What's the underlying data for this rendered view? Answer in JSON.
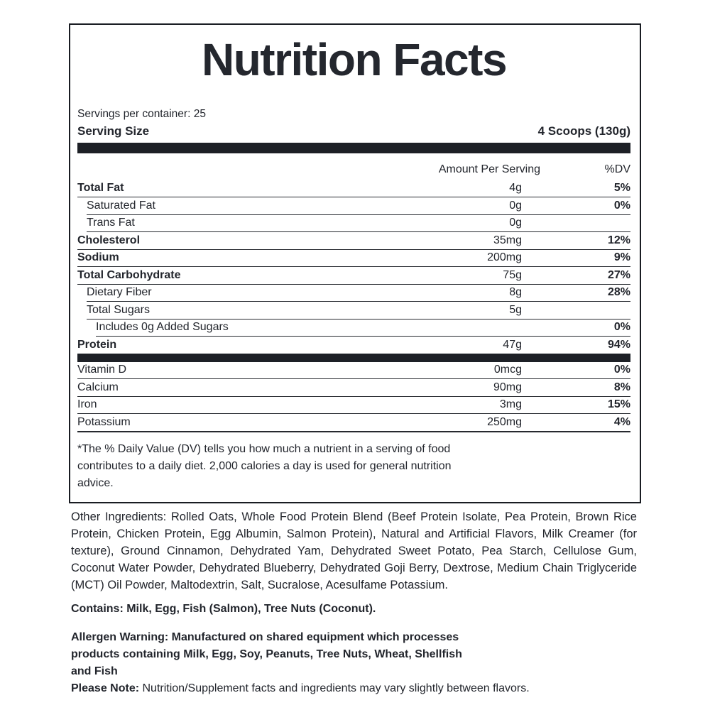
{
  "colors": {
    "ink": "#22252c",
    "bar": "#1d2026",
    "rule": "#26292f"
  },
  "label": {
    "title": "Nutrition Facts",
    "servings_per_container": "Servings per container: 25",
    "serving_size_label": "Serving Size",
    "serving_size_value": "4 Scoops (130g)",
    "header": {
      "amount": "Amount Per Serving",
      "dv": "%DV"
    },
    "rows": [
      {
        "name": "Total Fat",
        "amount": "4g",
        "dv": "5%"
      },
      {
        "name": "Saturated Fat",
        "amount": "0g",
        "dv": "0%"
      },
      {
        "name": "Trans Fat",
        "amount": "0g",
        "dv": ""
      },
      {
        "name": "Cholesterol",
        "amount": "35mg",
        "dv": "12%"
      },
      {
        "name": "Sodium",
        "amount": "200mg",
        "dv": "9%"
      },
      {
        "name": "Total Carbohydrate",
        "amount": "75g",
        "dv": "27%"
      },
      {
        "name": "Dietary Fiber",
        "amount": "8g",
        "dv": "28%"
      },
      {
        "name": "Total Sugars",
        "amount": "5g",
        "dv": ""
      },
      {
        "name": "Includes 0g Added Sugars",
        "amount": "",
        "dv": "0%"
      },
      {
        "name": "Protein",
        "amount": "47g",
        "dv": "94%"
      }
    ],
    "micronutrients": [
      {
        "name": "Vitamin D",
        "amount": "0mcg",
        "dv": "0%"
      },
      {
        "name": "Calcium",
        "amount": "90mg",
        "dv": "8%"
      },
      {
        "name": "Iron",
        "amount": "3mg",
        "dv": "15%"
      },
      {
        "name": "Potassium",
        "amount": "250mg",
        "dv": "4%"
      }
    ],
    "footnote": "*The % Daily Value (DV) tells you how much a nutrient in a serving of food contributes to a daily diet. 2,000 calories a day is used for general nutrition advice."
  },
  "ingredients_text": "Other Ingredients: Rolled Oats, Whole Food Protein Blend (Beef Protein Isolate, Pea Protein, Brown Rice Protein, Chicken Protein, Egg Albumin, Salmon Protein), Natural and Artificial Flavors, Milk Creamer (for texture), Ground Cinnamon, Dehydrated Yam, Dehydrated Sweet Potato, Pea Starch, Cellulose Gum, Coconut Water Powder, Dehydrated Blueberry, Dehydrated Goji Berry, Dextrose, Medium Chain Triglyceride (MCT) Oil Powder, Maltodextrin, Salt, Sucralose, Acesulfame Potassium.",
  "contains_text": "Contains: Milk, Egg, Fish (Salmon), Tree Nuts (Coconut).",
  "allergen": {
    "line1": "Allergen Warning: Manufactured on shared equipment which processes",
    "line2": "products containing Milk, Egg, Soy, Peanuts, Tree Nuts, Wheat, Shellfish",
    "line3": "and Fish"
  },
  "please_note": {
    "label": "Please Note:",
    "text": "Nutrition/Supplement facts and ingredients may vary slightly between flavors."
  }
}
